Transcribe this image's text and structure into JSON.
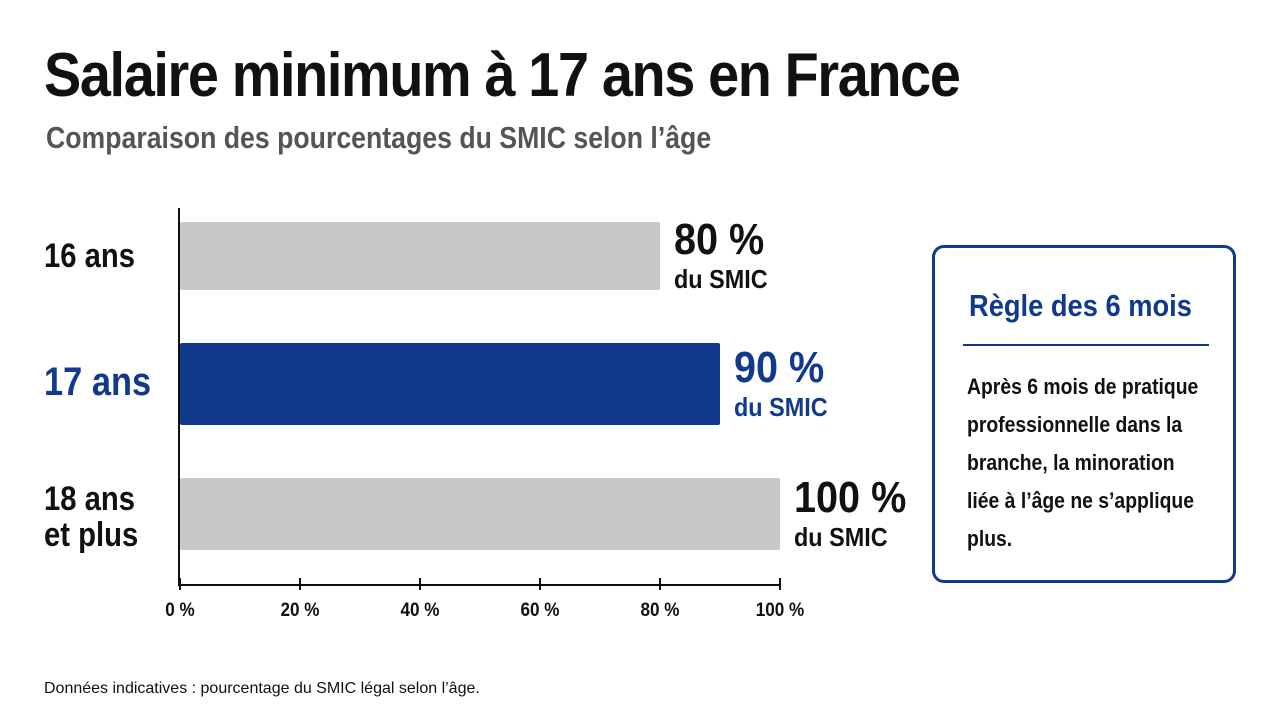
{
  "chart_data": {
    "type": "bar",
    "orientation": "horizontal",
    "title": "Salaire minimum à 17 ans en France",
    "subtitle": "Comparaison des pourcentages du SMIC selon l’âge",
    "categories": [
      [
        "16 ans"
      ],
      [
        "17 ans"
      ],
      [
        "18 ans",
        "et plus"
      ]
    ],
    "values": [
      80,
      90,
      100
    ],
    "value_labels": [
      {
        "value": "80 %",
        "unit": "du SMIC"
      },
      {
        "value": "90 %",
        "unit": "du SMIC"
      },
      {
        "value": "100 %",
        "unit": "du SMIC"
      }
    ],
    "highlight_index": 1,
    "xlim": [
      0,
      100
    ],
    "x_ticks": [
      0,
      20,
      40,
      60,
      80,
      100
    ],
    "x_tick_labels": [
      "0 %",
      "20 %",
      "40 %",
      "60 %",
      "80 %",
      "100 %"
    ],
    "grid": false,
    "colors": {
      "default_bar": "#c8c8c8",
      "highlight_bar": "#123a8c",
      "highlight_text": "#123a8c"
    }
  },
  "note_box": {
    "title": "Règle des 6 mois",
    "body": "Après 6 mois de pratique professionnelle dans la branche, la minoration liée à l’âge ne s’applique plus."
  },
  "footnote": "Données indicatives : pourcentage du SMIC légal selon l’âge."
}
